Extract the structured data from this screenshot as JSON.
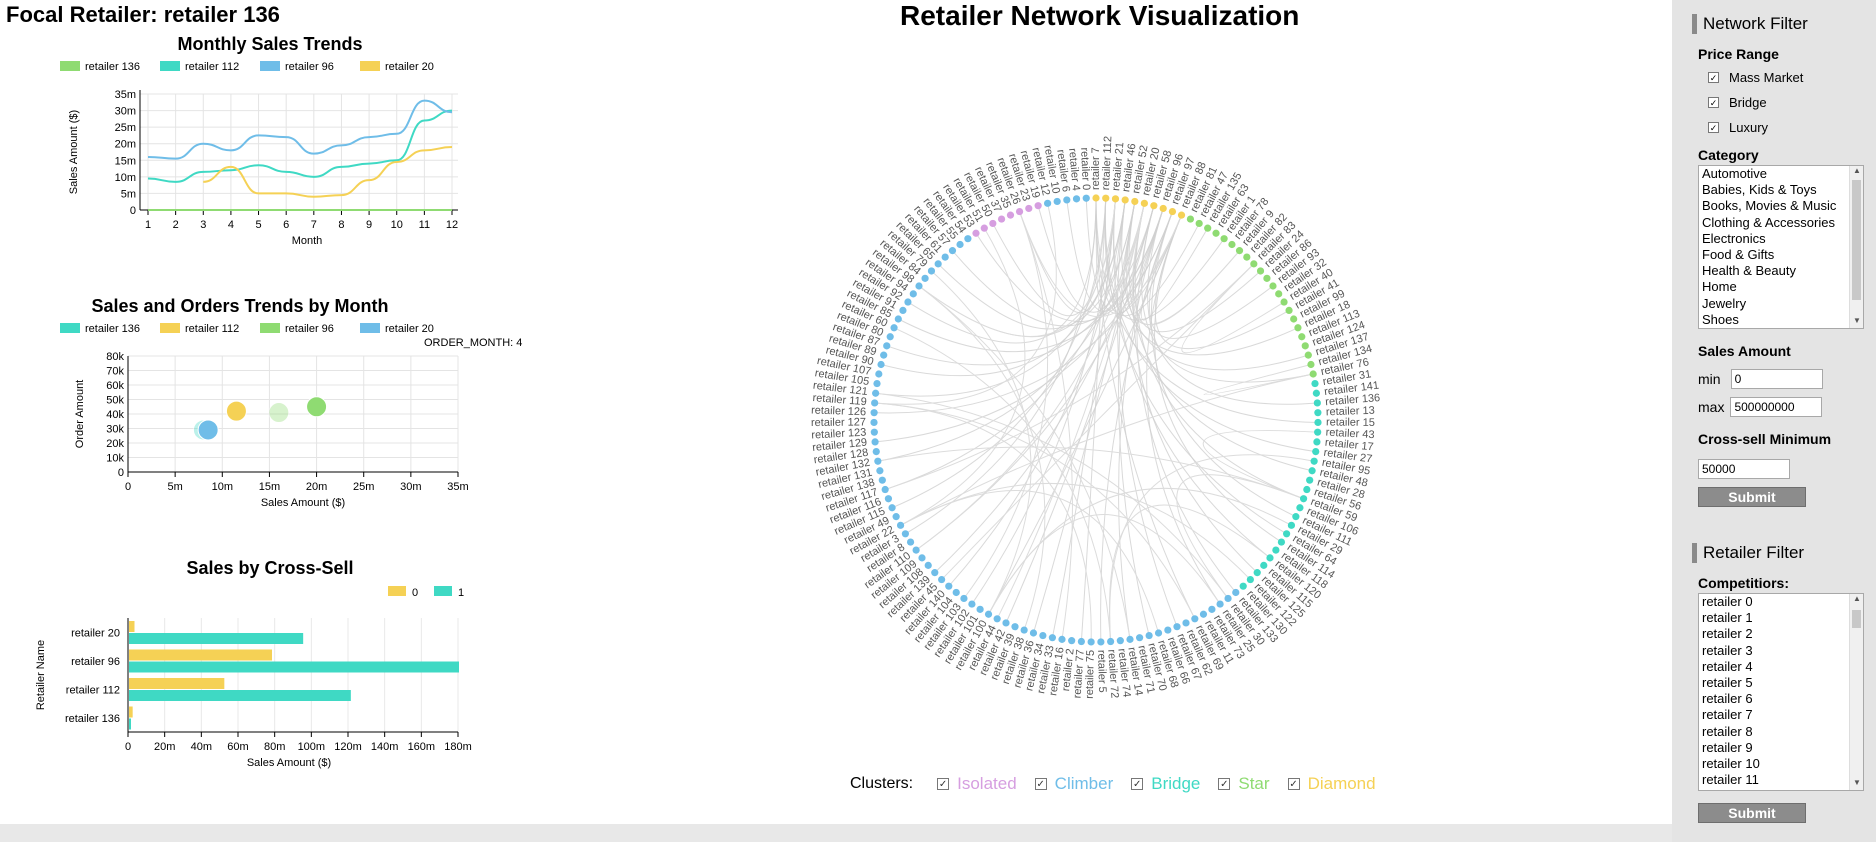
{
  "focal_title": "Focal Retailer: retailer 136",
  "network_title": "Retailer Network Visualization",
  "charts": {
    "sales_trends": {
      "title": "Monthly Sales Trends",
      "ylabel": "Sales Amount ($)",
      "xlabel": "Month",
      "legend": [
        "retailer 136",
        "retailer 112",
        "retailer 96",
        "retailer 20"
      ],
      "colors": [
        "#8fdb72",
        "#3fd9c4",
        "#6fbde8",
        "#f5d155"
      ],
      "yticks": [
        "0",
        "5m",
        "10m",
        "15m",
        "20m",
        "25m",
        "30m",
        "35m"
      ],
      "xticks": [
        "1",
        "2",
        "3",
        "4",
        "5",
        "6",
        "7",
        "8",
        "9",
        "10",
        "11",
        "12"
      ]
    },
    "sales_orders": {
      "title": "Sales and Orders Trends by Month",
      "legend": [
        "retailer 136",
        "retailer 112",
        "retailer 96",
        "retailer 20"
      ],
      "legend_colors": [
        "#3fd9c4",
        "#f5d155",
        "#8fdb72",
        "#6fbde8"
      ],
      "month_label": "ORDER_MONTH: 4",
      "ylabel": "Order Amount",
      "xlabel": "Sales Amount ($)",
      "yticks": [
        "0",
        "10k",
        "20k",
        "30k",
        "40k",
        "50k",
        "60k",
        "70k",
        "80k"
      ],
      "xticks": [
        "0",
        "5m",
        "10m",
        "15m",
        "20m",
        "25m",
        "30m",
        "35m"
      ]
    },
    "cross_sell": {
      "title": "Sales by Cross-Sell",
      "legend": [
        "0",
        "1"
      ],
      "colors": [
        "#f5d155",
        "#3fd9c4"
      ],
      "ylabel": "Retailer Name",
      "xlabel": "Sales Amount ($)",
      "categories": [
        "retailer 20",
        "retailer 96",
        "retailer 112",
        "retailer 136"
      ],
      "xticks": [
        "0",
        "20m",
        "40m",
        "60m",
        "80m",
        "100m",
        "120m",
        "140m",
        "160m",
        "180m"
      ]
    }
  },
  "chart_data": [
    {
      "type": "line",
      "title": "Monthly Sales Trends",
      "xlabel": "Month",
      "ylabel": "Sales Amount ($)",
      "x": [
        1,
        2,
        3,
        4,
        5,
        6,
        7,
        8,
        9,
        10,
        11,
        12
      ],
      "ylim": [
        0,
        35000000
      ],
      "series": [
        {
          "name": "retailer 136",
          "values": [
            0,
            0,
            0,
            0,
            0,
            0,
            0,
            0,
            0,
            0,
            0,
            0
          ]
        },
        {
          "name": "retailer 112",
          "values": [
            9500000,
            8500000,
            11500000,
            12000000,
            13500000,
            11500000,
            10000000,
            13000000,
            14000000,
            15000000,
            27000000,
            30000000
          ]
        },
        {
          "name": "retailer 96",
          "values": [
            16000000,
            15500000,
            20000000,
            18000000,
            22500000,
            22000000,
            17000000,
            19500000,
            22000000,
            23000000,
            33000000,
            29500000
          ]
        },
        {
          "name": "retailer 20",
          "values": [
            null,
            null,
            8500000,
            13000000,
            5000000,
            5000000,
            4000000,
            4500000,
            9000000,
            14500000,
            18000000,
            19000000
          ]
        }
      ]
    },
    {
      "type": "scatter",
      "title": "Sales and Orders Trends by Month",
      "xlabel": "Sales Amount ($)",
      "ylabel": "Order Amount",
      "xlim": [
        0,
        35000000
      ],
      "ylim": [
        0,
        80000
      ],
      "month": 4,
      "series": [
        {
          "name": "retailer 136",
          "x": 8000000,
          "y": 29000,
          "faded": true
        },
        {
          "name": "retailer 112",
          "x": 11500000,
          "y": 42000
        },
        {
          "name": "retailer 96",
          "x": 20000000,
          "y": 45000
        },
        {
          "name": "retailer 96",
          "x": 16000000,
          "y": 41000,
          "faded": true
        },
        {
          "name": "retailer 20",
          "x": 8500000,
          "y": 29000
        }
      ]
    },
    {
      "type": "bar",
      "orientation": "horizontal",
      "title": "Sales by Cross-Sell",
      "xlabel": "Sales Amount ($)",
      "ylabel": "Retailer Name",
      "categories": [
        "retailer 20",
        "retailer 96",
        "retailer 112",
        "retailer 136"
      ],
      "xlim": [
        0,
        180000000
      ],
      "series": [
        {
          "name": "0",
          "values": [
            3000000,
            78000000,
            52000000,
            2000000
          ]
        },
        {
          "name": "1",
          "values": [
            95000000,
            180000000,
            121000000,
            1000000
          ]
        }
      ]
    }
  ],
  "network": {
    "clusters_label": "Clusters:",
    "clusters": [
      {
        "name": "Isolated",
        "color": "#d69ee0"
      },
      {
        "name": "Climber",
        "color": "#6fbde8"
      },
      {
        "name": "Bridge",
        "color": "#3fd9c4"
      },
      {
        "name": "Star",
        "color": "#8fdb72"
      },
      {
        "name": "Diamond",
        "color": "#f5d155"
      }
    ],
    "node_labels": [
      "retailer 7",
      "retailer 112",
      "retailer 21",
      "retailer 46",
      "retailer 52",
      "retailer 20",
      "retailer 58",
      "retailer 96",
      "retailer 97",
      "retailer 88",
      "retailer 81",
      "retailer 47",
      "retailer 135",
      "retailer 63",
      "retailer 1",
      "retailer 78",
      "retailer 9",
      "retailer 82",
      "retailer 83",
      "retailer 24",
      "retailer 86",
      "retailer 93",
      "retailer 32",
      "retailer 40",
      "retailer 41",
      "retailer 99",
      "retailer 18",
      "retailer 113",
      "retailer 124",
      "retailer 137",
      "retailer 134",
      "retailer 76",
      "retailer 31",
      "retailer 141",
      "retailer 136",
      "retailer 13",
      "retailer 15",
      "retailer 43",
      "retailer 17",
      "retailer 27",
      "retailer 95",
      "retailer 48",
      "retailer 28",
      "retailer 56",
      "retailer 59",
      "retailer 106",
      "retailer 111",
      "retailer 29",
      "retailer 64",
      "retailer 114",
      "retailer 118",
      "retailer 120",
      "retailer 115",
      "retailer 125",
      "retailer 122",
      "retailer 130",
      "retailer 133",
      "retailer 30",
      "retailer 25",
      "retailer 73",
      "retailer 11",
      "retailer 69",
      "retailer 62",
      "retailer 67",
      "retailer 66",
      "retailer 68",
      "retailer 70",
      "retailer 71",
      "retailer 14",
      "retailer 74",
      "retailer 72",
      "retailer 5",
      "retailer 75",
      "retailer 77",
      "retailer 2",
      "retailer 16",
      "retailer 33",
      "retailer 34",
      "retailer 36",
      "retailer 38",
      "retailer 39",
      "retailer 42",
      "retailer 44",
      "retailer 100",
      "retailer 101",
      "retailer 102",
      "retailer 103",
      "retailer 104",
      "retailer 140",
      "retailer 45",
      "retailer 139",
      "retailer 108",
      "retailer 109",
      "retailer 110",
      "retailer 8",
      "retailer 3",
      "retailer 22",
      "retailer 49",
      "retailer 115",
      "retailer 116",
      "retailer 117",
      "retailer 138",
      "retailer 131",
      "retailer 132",
      "retailer 128",
      "retailer 129",
      "retailer 123",
      "retailer 127",
      "retailer 126",
      "retailer 119",
      "retailer 121",
      "retailer 105",
      "retailer 107",
      "retailer 90",
      "retailer 89",
      "retailer 87",
      "retailer 80",
      "retailer 60",
      "retailer 85",
      "retailer 91",
      "retailer 92",
      "retailer 94",
      "retailer 98",
      "retailer 84",
      "retailer 79",
      "retailer 65",
      "retailer 61",
      "retailer 57",
      "retailer 55",
      "retailer 54",
      "retailer 53",
      "retailer 51",
      "retailer 50",
      "retailer 37",
      "retailer 35",
      "retailer 26",
      "retailer 23",
      "retailer 19",
      "retailer 12",
      "retailer 10",
      "retailer 6",
      "retailer 4",
      "retailer 0"
    ]
  },
  "sidebar": {
    "network_filter": "Network Filter",
    "price_range_label": "Price Range",
    "price_options": [
      "Mass Market",
      "Bridge",
      "Luxury"
    ],
    "category_label": "Category",
    "categories": [
      "Automotive",
      "Babies, Kids & Toys",
      "Books, Movies & Music",
      "Clothing & Accessories",
      "Electronics",
      "Food & Gifts",
      "Health & Beauty",
      "Home",
      "Jewelry",
      "Shoes"
    ],
    "sales_amount_label": "Sales Amount",
    "min_label": "min",
    "min_value": "0",
    "max_label": "max",
    "max_value": "500000000",
    "cross_sell_label": "Cross-sell Minimum",
    "cross_sell_value": "50000",
    "submit_label": "Submit",
    "retailer_filter": "Retailer Filter",
    "competitors_label": "Competitiors:",
    "competitors": [
      "retailer 0",
      "retailer 1",
      "retailer 2",
      "retailer 3",
      "retailer 4",
      "retailer 5",
      "retailer 6",
      "retailer 7",
      "retailer 8",
      "retailer 9",
      "retailer 10",
      "retailer 11"
    ]
  }
}
